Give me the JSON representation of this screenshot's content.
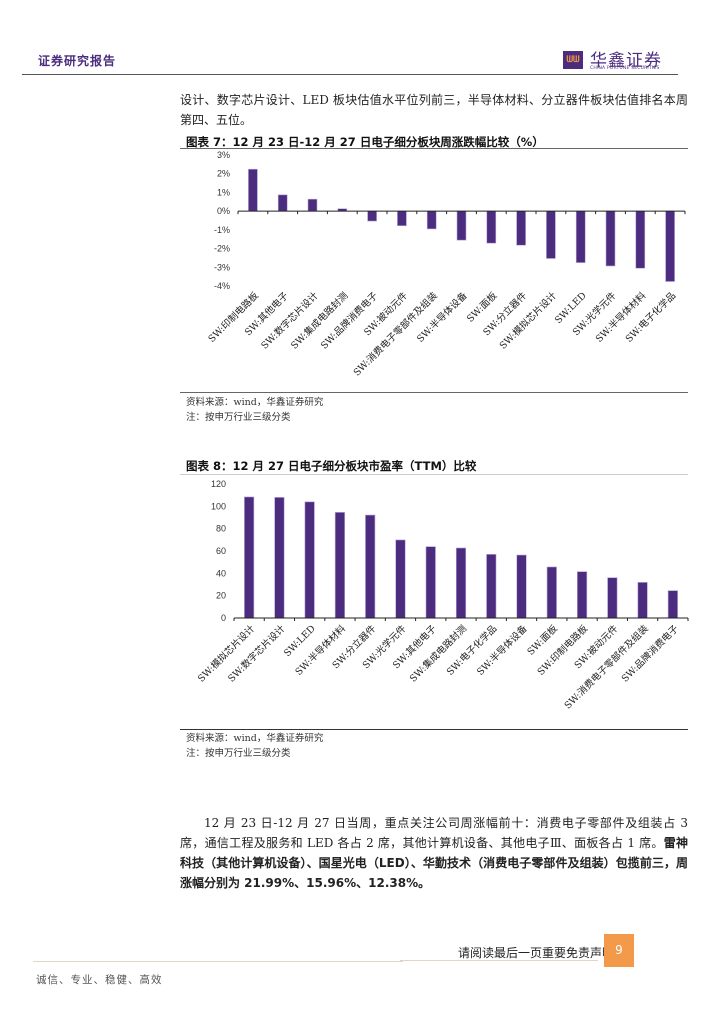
{
  "header": {
    "report_type": "证券研究报告",
    "logo_mark": "ᗯᗯ",
    "logo_cn": "华鑫证券",
    "logo_en": "CHINA FORTUNE SECURITIES"
  },
  "intro_paragraph": "设计、数字芯片设计、LED 板块估值水平位列前三，半导体材料、分立器件板块估值排名本周第四、五位。",
  "figure7": {
    "title": "图表 7：12 月 23 日-12 月 27 日电子细分板块周涨跌幅比较（%）",
    "source": "资料来源：wind，华鑫证券研究",
    "note": "注：按申万行业三级分类"
  },
  "figure8": {
    "title": "图表 8：12 月 27 日电子细分板块市盈率（TTM）比较",
    "source": "资料来源：wind，华鑫证券研究",
    "note": "注：按申万行业三级分类"
  },
  "chart_data": [
    {
      "type": "bar",
      "title": "图表 7：12 月 23 日-12 月 27 日电子细分板块周涨跌幅比较（%）",
      "xlabel": "",
      "ylabel": "",
      "ylim": [
        -4,
        3
      ],
      "yticks": [
        "3%",
        "2%",
        "1%",
        "0%",
        "-1%",
        "-2%",
        "-3%",
        "-4%"
      ],
      "grid": false,
      "legend": null,
      "color": "#4b2c7f",
      "categories": [
        "SW:印制电路板",
        "SW:其他电子",
        "SW:数字芯片设计",
        "SW:集成电路封测",
        "SW:品牌消费电子",
        "SW:被动元件",
        "SW:消费电子零部件及组装",
        "SW:半导体设备",
        "SW:面板",
        "SW:分立器件",
        "SW:模拟芯片设计",
        "SW:LED",
        "SW:光学元件",
        "SW:半导体材料",
        "SW:电子化学品"
      ],
      "values": [
        2.24,
        0.87,
        0.64,
        0.13,
        -0.53,
        -0.78,
        -0.95,
        -1.55,
        -1.71,
        -1.82,
        -2.53,
        -2.75,
        -2.93,
        -3.05,
        -3.76
      ]
    },
    {
      "type": "bar",
      "title": "图表 8：12 月 27 日电子细分板块市盈率（TTM）比较",
      "xlabel": "",
      "ylabel": "",
      "ylim": [
        0,
        120
      ],
      "yticks": [
        "120",
        "100",
        "80",
        "60",
        "40",
        "20",
        "0"
      ],
      "grid": false,
      "legend": null,
      "color": "#4b2c7f",
      "categories": [
        "SW:模拟芯片设计",
        "SW:数字芯片设计",
        "SW:LED",
        "SW:半导体材料",
        "SW:分立器件",
        "SW:光学元件",
        "SW:其他电子",
        "SW:集成电路封测",
        "SW:电子化学品",
        "SW:半导体设备",
        "SW:面板",
        "SW:印制电路板",
        "SW:被动元件",
        "SW:消费电子零部件及组装",
        "SW:品牌消费电子"
      ],
      "values": [
        108.4,
        108.0,
        104.0,
        94.6,
        92.2,
        69.9,
        63.9,
        62.7,
        57.0,
        56.4,
        45.7,
        41.5,
        36.1,
        31.9,
        24.5
      ]
    }
  ],
  "summary_paragraph": {
    "normal": "12 月 23 日-12 月 27 日当周，重点关注公司周涨幅前十：消费电子零部件及组装占 3 席，通信工程及服务和 LED 各占 2 席，其他计算机设备、其他电子Ⅲ、面板各占 1 席。",
    "bold": "雷神科技（其他计算机设备）、国星光电（LED）、华勤技术（消费电子零部件及组装）包揽前三，周涨幅分别为 21.99%、15.96%、12.38%。"
  },
  "footer": {
    "disclaimer": "请阅读最后一页重要免责声明",
    "page_number": "9",
    "motto": "诚信、专业、稳健、高效"
  }
}
